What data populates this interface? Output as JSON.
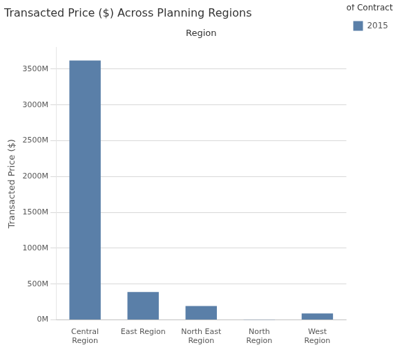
{
  "chart_data": {
    "type": "bar",
    "title": "Transacted Price ($) Across Planning Regions",
    "xlabel": "Region",
    "ylabel": "Transacted Price ($)",
    "categories": [
      "Central\nRegion",
      "East Region",
      "North East\nRegion",
      "North\nRegion",
      "West\nRegion"
    ],
    "series": [
      {
        "name": "2015",
        "color": "#5a7fa8",
        "values": [
          3620000000,
          390000000,
          195000000,
          2000000,
          90000000
        ]
      }
    ],
    "legend_title": "Year of Contract Date",
    "legend": "upper right",
    "ylim": [
      0,
      3800000000
    ],
    "yticks": [
      {
        "value": 0,
        "label": "0M"
      },
      {
        "value": 500000000,
        "label": "500M"
      },
      {
        "value": 1000000000,
        "label": "1000M"
      },
      {
        "value": 1500000000,
        "label": "1500M"
      },
      {
        "value": 2000000000,
        "label": "2000M"
      },
      {
        "value": 2500000000,
        "label": "2500M"
      },
      {
        "value": 3000000000,
        "label": "3000M"
      },
      {
        "value": 3500000000,
        "label": "3500M"
      }
    ],
    "grid": true
  }
}
